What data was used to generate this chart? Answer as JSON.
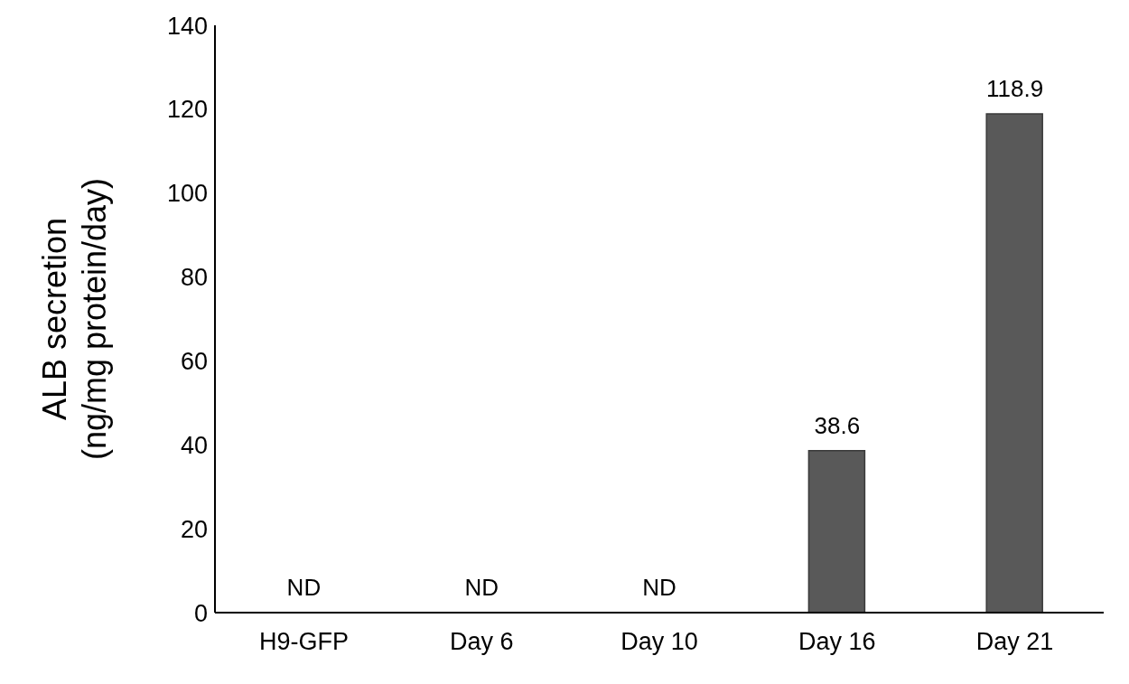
{
  "chart_data": {
    "type": "bar",
    "ylabel": "ALB secretion\n(ng/mg protein/day)",
    "categories": [
      "H9-GFP",
      "Day 6",
      "Day 10",
      "Day 16",
      "Day 21"
    ],
    "values": [
      null,
      null,
      null,
      38.6,
      118.9
    ],
    "value_labels": [
      "ND",
      "ND",
      "ND",
      "38.6",
      "118.9"
    ],
    "color": "#595959",
    "ylim": [
      0,
      140
    ],
    "yticks": [
      0,
      20,
      40,
      60,
      80,
      100,
      120,
      140
    ],
    "grid": false,
    "legend": false
  }
}
